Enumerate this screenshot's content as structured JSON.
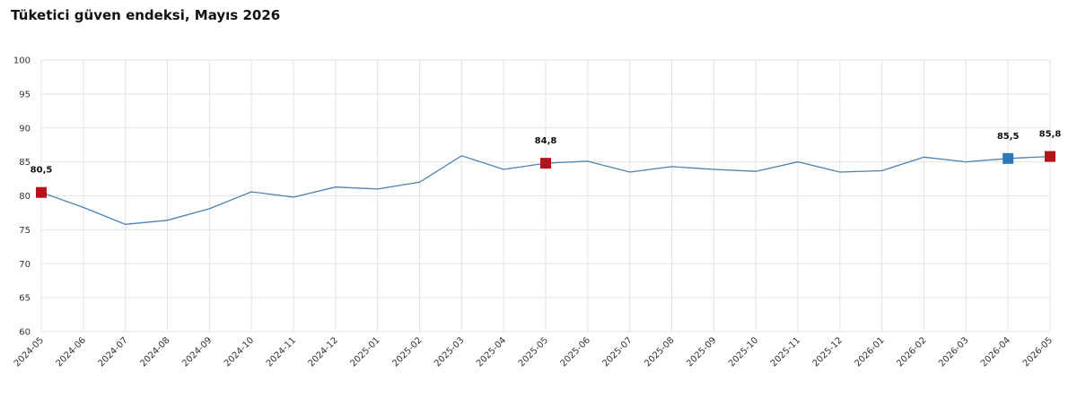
{
  "chart_data": {
    "type": "line",
    "title": "Tüketici güven endeksi, Mayıs 2026",
    "categories": [
      "2024-05",
      "2024-06",
      "2024-07",
      "2024-08",
      "2024-09",
      "2024-10",
      "2024-11",
      "2024-12",
      "2025-01",
      "2025-02",
      "2025-03",
      "2025-04",
      "2025-05",
      "2025-06",
      "2025-07",
      "2025-08",
      "2025-09",
      "2025-10",
      "2025-11",
      "2025-12",
      "2026-01",
      "2026-02",
      "2026-03",
      "2026-04",
      "2026-05"
    ],
    "values": [
      80.5,
      78.3,
      75.8,
      76.4,
      78.1,
      80.6,
      79.8,
      81.3,
      81.0,
      82.0,
      85.9,
      83.9,
      84.8,
      85.1,
      83.5,
      84.3,
      83.9,
      83.6,
      85.0,
      83.5,
      83.7,
      85.7,
      85.0,
      85.5,
      85.8
    ],
    "value_labels": [
      "80,5",
      null,
      null,
      null,
      null,
      null,
      null,
      null,
      null,
      null,
      null,
      null,
      "84,8",
      null,
      null,
      null,
      null,
      null,
      null,
      null,
      null,
      null,
      null,
      "85,5",
      "85,8"
    ],
    "marker_colors": [
      "#b5121b",
      null,
      null,
      null,
      null,
      null,
      null,
      null,
      null,
      null,
      null,
      null,
      "#b5121b",
      null,
      null,
      null,
      null,
      null,
      null,
      null,
      null,
      null,
      null,
      "#2e78b7",
      "#b5121b"
    ],
    "color": "#4a80b4",
    "ylim": [
      60,
      100
    ],
    "yticks": [
      60,
      65,
      70,
      75,
      80,
      85,
      90,
      95,
      100
    ],
    "grid": true
  }
}
